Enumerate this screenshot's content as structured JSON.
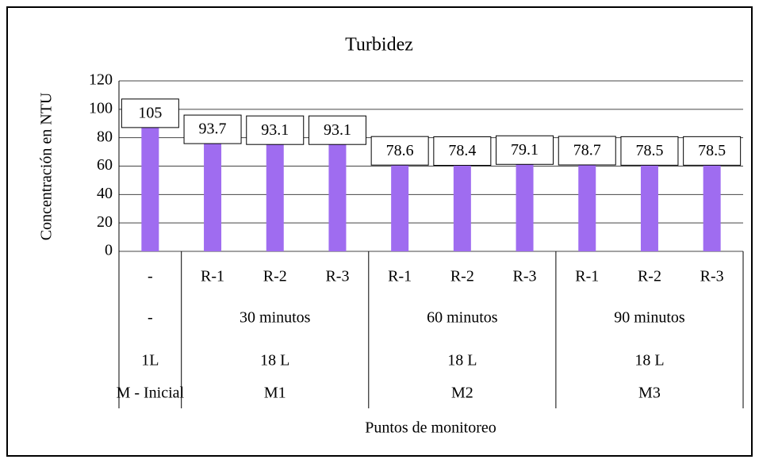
{
  "chart_data": {
    "type": "bar",
    "title": "Turbidez",
    "y_label": "Concentración en NTU",
    "x_label": "Puntos de monitoreo",
    "categories": [
      [
        "-",
        "-",
        "1L",
        "M - Inicial"
      ],
      [
        "R-1",
        "30 minutos",
        "18 L",
        "M1"
      ],
      [
        "R-2",
        "30 minutos",
        "18 L",
        "M1"
      ],
      [
        "R-3",
        "30 minutos",
        "18 L",
        "M1"
      ],
      [
        "R-1",
        "60 minutos",
        "18 L",
        "M2"
      ],
      [
        "R-2",
        "60 minutos",
        "18 L",
        "M2"
      ],
      [
        "R-3",
        "60 minutos",
        "18 L",
        "M2"
      ],
      [
        "R-1",
        "90 minutos",
        "18 L",
        "M3"
      ],
      [
        "R-2",
        "90 minutos",
        "18 L",
        "M3"
      ],
      [
        "R-3",
        "90 minutos",
        "18 L",
        "M3"
      ]
    ],
    "values": [
      105,
      93.7,
      93.1,
      93.1,
      78.6,
      78.4,
      79.1,
      78.7,
      78.5,
      78.5
    ],
    "color": "#9f6cf0",
    "ylim": [
      0,
      120
    ],
    "yticks": [
      0,
      20,
      40,
      60,
      80,
      100,
      120
    ],
    "grid": true
  }
}
